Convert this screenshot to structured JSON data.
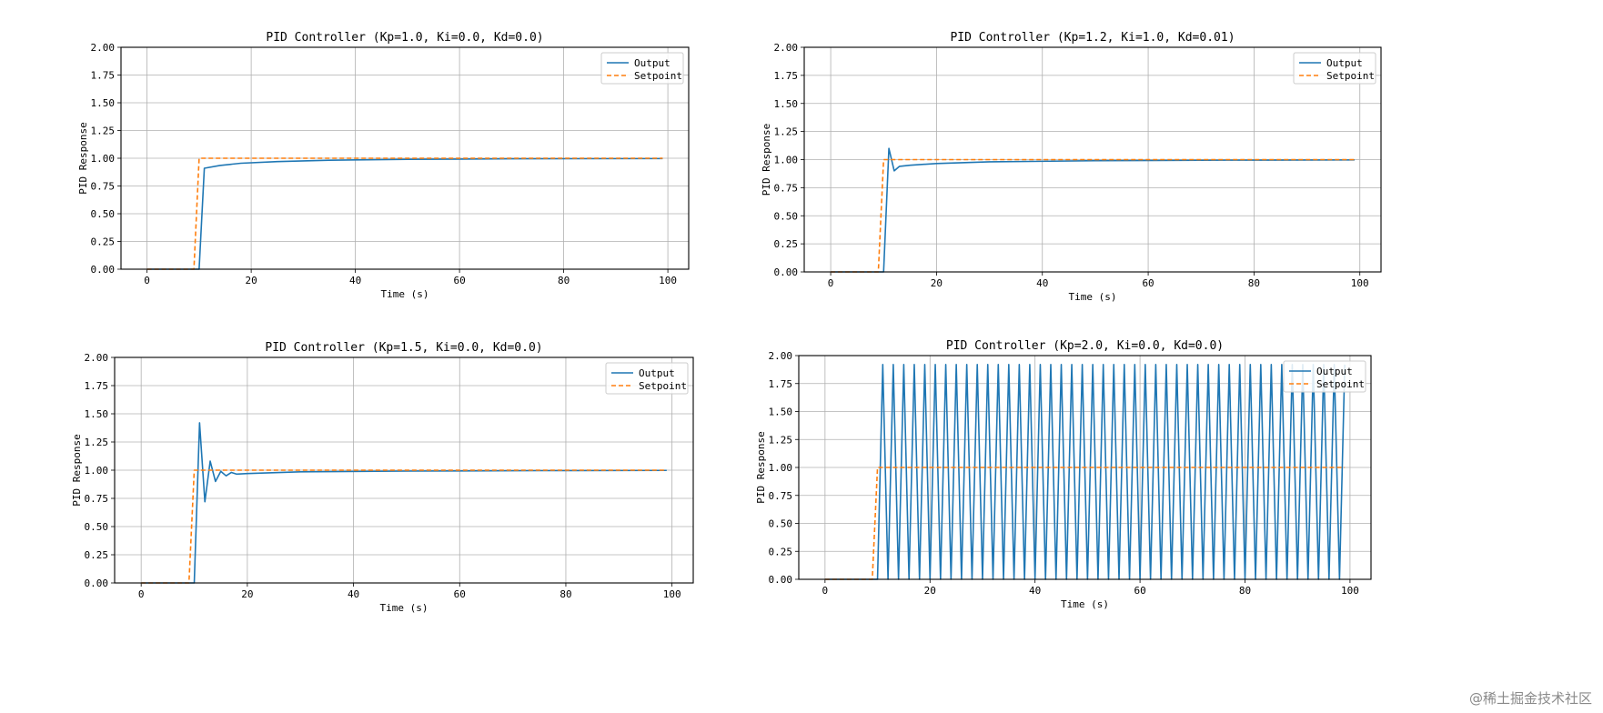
{
  "colors": {
    "output": "#1f77b4",
    "setpoint": "#ff7f0e"
  },
  "watermark": "@稀土掘金技术社区",
  "chart_data": [
    {
      "type": "line",
      "title": "PID Controller (Kp=1.0, Ki=0.0, Kd=0.0)",
      "xlabel": "Time (s)",
      "ylabel": "PID Response",
      "xlim": [
        -5,
        104
      ],
      "ylim": [
        0,
        2
      ],
      "xticks": [
        "0",
        "20",
        "40",
        "60",
        "80",
        "100"
      ],
      "yticks": [
        "0.00",
        "0.25",
        "0.50",
        "0.75",
        "1.00",
        "1.25",
        "1.50",
        "1.75",
        "2.00"
      ],
      "grid": true,
      "legend": "top-right",
      "series": [
        {
          "name": "Output",
          "style": "solid",
          "x": [
            0,
            9,
            10,
            11,
            14,
            18,
            25,
            35,
            50,
            70,
            99
          ],
          "y": [
            0,
            0,
            0,
            0.91,
            0.935,
            0.955,
            0.97,
            0.982,
            0.99,
            0.995,
            0.997
          ]
        },
        {
          "name": "Setpoint",
          "style": "dashed",
          "x": [
            0,
            9,
            10,
            99
          ],
          "y": [
            0,
            0,
            1,
            1
          ]
        }
      ]
    },
    {
      "type": "line",
      "title": "PID Controller (Kp=1.2, Ki=1.0, Kd=0.01)",
      "xlabel": "Time (s)",
      "ylabel": "PID Response",
      "xlim": [
        -5,
        104
      ],
      "ylim": [
        0,
        2
      ],
      "xticks": [
        "0",
        "20",
        "40",
        "60",
        "80",
        "100"
      ],
      "yticks": [
        "0.00",
        "0.25",
        "0.50",
        "0.75",
        "1.00",
        "1.25",
        "1.50",
        "1.75",
        "2.00"
      ],
      "grid": true,
      "legend": "top-right",
      "series": [
        {
          "name": "Output",
          "style": "solid",
          "x": [
            0,
            10,
            11,
            12,
            13,
            15,
            20,
            30,
            50,
            75,
            99
          ],
          "y": [
            0,
            0,
            1.1,
            0.9,
            0.94,
            0.95,
            0.965,
            0.98,
            0.99,
            0.995,
            0.997
          ]
        },
        {
          "name": "Setpoint",
          "style": "dashed",
          "x": [
            0,
            9,
            10,
            99
          ],
          "y": [
            0,
            0,
            1,
            1
          ]
        }
      ]
    },
    {
      "type": "line",
      "title": "PID Controller (Kp=1.5, Ki=0.0, Kd=0.0)",
      "xlabel": "Time (s)",
      "ylabel": "PID Response",
      "xlim": [
        -5,
        104
      ],
      "ylim": [
        0,
        2
      ],
      "xticks": [
        "0",
        "20",
        "40",
        "60",
        "80",
        "100"
      ],
      "yticks": [
        "0.00",
        "0.25",
        "0.50",
        "0.75",
        "1.00",
        "1.25",
        "1.50",
        "1.75",
        "2.00"
      ],
      "grid": true,
      "legend": "top-right",
      "series": [
        {
          "name": "Output",
          "style": "solid",
          "x": [
            0,
            10,
            11,
            12,
            13,
            14,
            15,
            16,
            17,
            18,
            20,
            30,
            50,
            75,
            99
          ],
          "y": [
            0,
            0,
            1.42,
            0.72,
            1.08,
            0.9,
            0.99,
            0.95,
            0.98,
            0.965,
            0.97,
            0.985,
            0.992,
            0.996,
            0.998
          ]
        },
        {
          "name": "Setpoint",
          "style": "dashed",
          "x": [
            0,
            9,
            10,
            99
          ],
          "y": [
            0,
            0,
            1,
            1
          ]
        }
      ]
    },
    {
      "type": "line",
      "title": "PID Controller (Kp=2.0, Ki=0.0, Kd=0.0)",
      "xlabel": "Time (s)",
      "ylabel": "PID Response",
      "xlim": [
        -5,
        104
      ],
      "ylim": [
        0,
        2
      ],
      "xticks": [
        "0",
        "20",
        "40",
        "60",
        "80",
        "100"
      ],
      "yticks": [
        "0.00",
        "0.25",
        "0.50",
        "0.75",
        "1.00",
        "1.25",
        "1.50",
        "1.75",
        "2.00"
      ],
      "grid": true,
      "legend": "top-right",
      "oscillation": {
        "start": 10,
        "end": 99,
        "low": 0,
        "high": 1.92
      },
      "series": [
        {
          "name": "Output",
          "style": "solid",
          "x": [],
          "y": []
        },
        {
          "name": "Setpoint",
          "style": "dashed",
          "x": [
            0,
            9,
            10,
            99
          ],
          "y": [
            0,
            0,
            1,
            1
          ]
        }
      ]
    }
  ]
}
